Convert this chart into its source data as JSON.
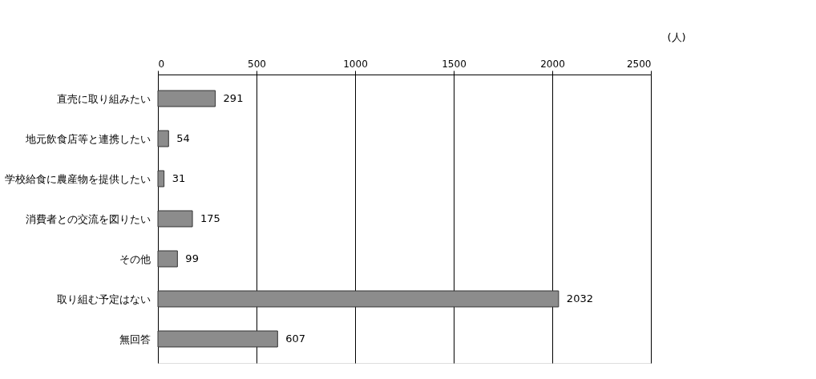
{
  "chart_data": {
    "type": "bar",
    "orientation": "horizontal",
    "categories": [
      "直売に取り組みたい",
      "地元飲食店等と連携したい",
      "学校給食に農産物を提供したい",
      "消費者との交流を図りたい",
      "その他",
      "取り組む予定はない",
      "無回答"
    ],
    "values": [
      291,
      54,
      31,
      175,
      99,
      2032,
      607
    ],
    "color": "#8c8c8c",
    "xlabel": "(人)",
    "xlim": [
      0,
      2500
    ],
    "xticks": [
      0,
      500,
      1000,
      1500,
      2000,
      2500
    ],
    "grid": "x",
    "data_labels": true
  }
}
